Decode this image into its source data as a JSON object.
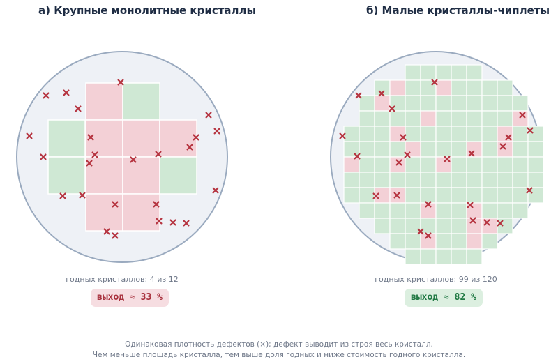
{
  "panel_a": {
    "title": "а)  Крупные монолитные кристаллы",
    "caption": "годных кристаллов: 4 из 12",
    "yield_label": "выход ≈ 33 %",
    "dies_total": 12,
    "dies_good": 4,
    "yield_percent": 33
  },
  "panel_b": {
    "title": "б)  Малые кристаллы-чиплеты",
    "caption": "годных кристаллов: 99 из 120",
    "yield_label": "выход ≈ 82 %",
    "dies_total": 120,
    "dies_good": 99,
    "yield_percent": 82
  },
  "footnote": {
    "line1": "Одинаковая плотность дефектов (×); дефект выводит из строя весь кристалл.",
    "line2": "Чем меньше площадь кристалла, тем выше доля годных и ниже стоимость годного кристалла."
  },
  "colors": {
    "good_die": "#cfe8d4",
    "bad_die": "#f3d0d6",
    "defect_marker": "#b5333f",
    "wafer_fill": "#eef1f6",
    "wafer_edge": "#9aaabf"
  },
  "legend": {
    "defect_marker_icon": "cross-mark-icon"
  }
}
